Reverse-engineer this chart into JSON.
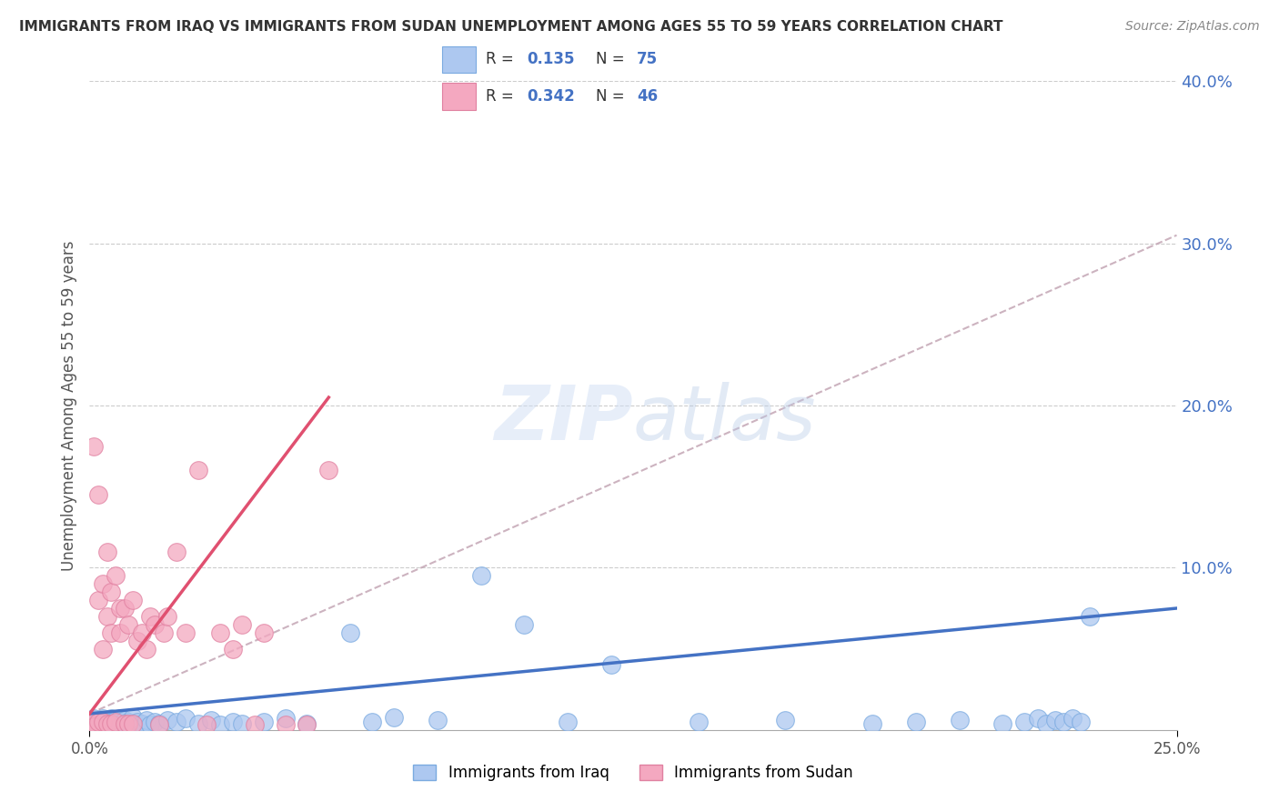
{
  "title": "IMMIGRANTS FROM IRAQ VS IMMIGRANTS FROM SUDAN UNEMPLOYMENT AMONG AGES 55 TO 59 YEARS CORRELATION CHART",
  "source": "Source: ZipAtlas.com",
  "ylabel": "Unemployment Among Ages 55 to 59 years",
  "xlim": [
    0.0,
    0.25
  ],
  "ylim": [
    0.0,
    0.4
  ],
  "ytick_positions": [
    0.1,
    0.2,
    0.3,
    0.4
  ],
  "ytick_labels": [
    "10.0%",
    "20.0%",
    "30.0%",
    "40.0%"
  ],
  "xtick_positions": [
    0.0,
    0.25
  ],
  "xtick_labels": [
    "0.0%",
    "25.0%"
  ],
  "iraq_R": 0.135,
  "iraq_N": 75,
  "sudan_R": 0.342,
  "sudan_N": 46,
  "iraq_color": "#adc8f0",
  "iraq_edge_color": "#7aaae0",
  "sudan_color": "#f4a8c0",
  "sudan_edge_color": "#e080a0",
  "iraq_line_color": "#4472c4",
  "sudan_line_color": "#e05070",
  "dashed_line_color": "#c0a0b0",
  "legend_text_color": "#4472c4",
  "legend_label_color": "#333333",
  "watermark_color": "#ccddf8",
  "grid_color": "#cccccc",
  "background_color": "#ffffff",
  "iraq_x": [
    0.001,
    0.001,
    0.001,
    0.001,
    0.001,
    0.001,
    0.002,
    0.002,
    0.002,
    0.002,
    0.002,
    0.003,
    0.003,
    0.003,
    0.003,
    0.003,
    0.004,
    0.004,
    0.004,
    0.004,
    0.005,
    0.005,
    0.005,
    0.005,
    0.006,
    0.006,
    0.006,
    0.007,
    0.007,
    0.007,
    0.008,
    0.008,
    0.009,
    0.009,
    0.01,
    0.01,
    0.011,
    0.012,
    0.013,
    0.014,
    0.015,
    0.016,
    0.018,
    0.02,
    0.022,
    0.025,
    0.028,
    0.03,
    0.033,
    0.035,
    0.04,
    0.045,
    0.05,
    0.06,
    0.065,
    0.07,
    0.08,
    0.09,
    0.1,
    0.11,
    0.12,
    0.14,
    0.16,
    0.18,
    0.19,
    0.2,
    0.21,
    0.215,
    0.218,
    0.22,
    0.222,
    0.224,
    0.226,
    0.228,
    0.23
  ],
  "iraq_y": [
    0.004,
    0.006,
    0.002,
    0.003,
    0.005,
    0.007,
    0.003,
    0.005,
    0.006,
    0.002,
    0.004,
    0.003,
    0.005,
    0.007,
    0.002,
    0.004,
    0.003,
    0.005,
    0.006,
    0.002,
    0.004,
    0.007,
    0.003,
    0.005,
    0.004,
    0.006,
    0.002,
    0.005,
    0.003,
    0.007,
    0.004,
    0.006,
    0.003,
    0.005,
    0.004,
    0.008,
    0.005,
    0.004,
    0.006,
    0.003,
    0.005,
    0.004,
    0.006,
    0.005,
    0.007,
    0.004,
    0.006,
    0.003,
    0.005,
    0.004,
    0.005,
    0.007,
    0.004,
    0.06,
    0.005,
    0.008,
    0.006,
    0.095,
    0.065,
    0.005,
    0.04,
    0.005,
    0.006,
    0.004,
    0.005,
    0.006,
    0.004,
    0.005,
    0.007,
    0.004,
    0.006,
    0.005,
    0.007,
    0.005,
    0.07
  ],
  "sudan_x": [
    0.001,
    0.001,
    0.001,
    0.001,
    0.002,
    0.002,
    0.002,
    0.003,
    0.003,
    0.003,
    0.004,
    0.004,
    0.004,
    0.005,
    0.005,
    0.005,
    0.006,
    0.006,
    0.007,
    0.007,
    0.008,
    0.008,
    0.009,
    0.009,
    0.01,
    0.01,
    0.011,
    0.012,
    0.013,
    0.014,
    0.015,
    0.016,
    0.017,
    0.018,
    0.02,
    0.022,
    0.025,
    0.027,
    0.03,
    0.033,
    0.035,
    0.038,
    0.04,
    0.045,
    0.05,
    0.055
  ],
  "sudan_y": [
    0.175,
    0.003,
    0.005,
    0.002,
    0.145,
    0.08,
    0.005,
    0.09,
    0.05,
    0.005,
    0.11,
    0.07,
    0.004,
    0.085,
    0.06,
    0.004,
    0.095,
    0.005,
    0.06,
    0.075,
    0.075,
    0.004,
    0.065,
    0.004,
    0.08,
    0.004,
    0.055,
    0.06,
    0.05,
    0.07,
    0.065,
    0.003,
    0.06,
    0.07,
    0.11,
    0.06,
    0.16,
    0.003,
    0.06,
    0.05,
    0.065,
    0.003,
    0.06,
    0.003,
    0.003,
    0.16
  ],
  "iraq_line_x": [
    0.0,
    0.25
  ],
  "iraq_line_y": [
    0.01,
    0.075
  ],
  "sudan_line_x": [
    0.0,
    0.055
  ],
  "sudan_line_y": [
    0.01,
    0.205
  ],
  "dashed_line_x": [
    0.0,
    0.25
  ],
  "dashed_line_y": [
    0.01,
    0.305
  ]
}
